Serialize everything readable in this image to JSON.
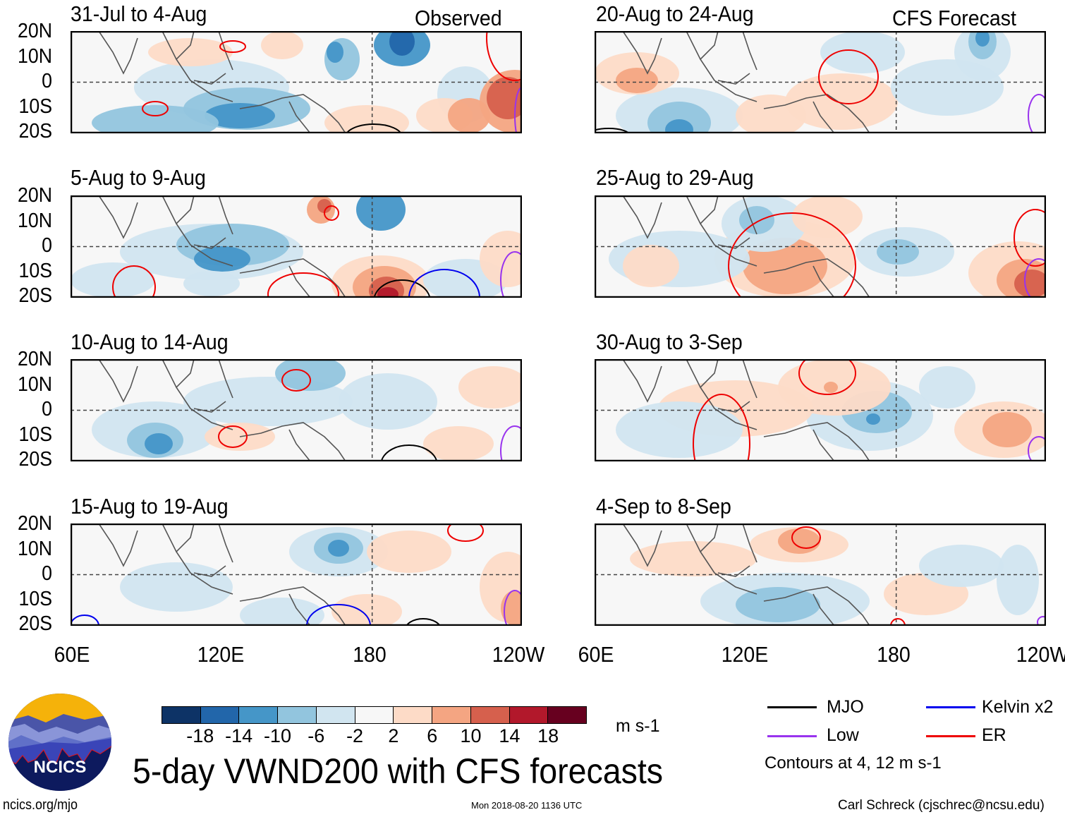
{
  "chart_data": {
    "type": "heatmap",
    "title": "5-day VWND200 with CFS forecasts",
    "variable": "VWND200",
    "units": "m s-1",
    "xlabel": "",
    "ylabel": "",
    "x_ticks": [
      "60E",
      "120E",
      "180",
      "120W"
    ],
    "y_ticks": [
      "20N",
      "10N",
      "0",
      "10S",
      "20S"
    ],
    "xlim": [
      "60E",
      "120W"
    ],
    "ylim": [
      "20S",
      "20N"
    ],
    "colorbar": {
      "levels": [
        -18,
        -14,
        -10,
        -6,
        -2,
        2,
        6,
        10,
        14,
        18
      ],
      "tick_labels": [
        "-18",
        "-14",
        "-10",
        "-6",
        "-2",
        "2",
        "6",
        "10",
        "14",
        "18"
      ],
      "colors": [
        "#0d3366",
        "#2266aa",
        "#4596c8",
        "#92c5de",
        "#d1e5f0",
        "#f7f7f7",
        "#fddbc7",
        "#f4a582",
        "#d6604d",
        "#b2182b",
        "#67001f"
      ],
      "units_label": "m s-1"
    },
    "panels": [
      {
        "id": "p1",
        "column": "left",
        "period": "31-Jul to 4-Aug",
        "tag": "Observed"
      },
      {
        "id": "p2",
        "column": "left",
        "period": "5-Aug to 9-Aug",
        "tag": ""
      },
      {
        "id": "p3",
        "column": "left",
        "period": "10-Aug to 14-Aug",
        "tag": ""
      },
      {
        "id": "p4",
        "column": "left",
        "period": "15-Aug to 19-Aug",
        "tag": ""
      },
      {
        "id": "p5",
        "column": "right",
        "period": "20-Aug to 24-Aug",
        "tag": "CFS Forecast"
      },
      {
        "id": "p6",
        "column": "right",
        "period": "25-Aug to 29-Aug",
        "tag": ""
      },
      {
        "id": "p7",
        "column": "right",
        "period": "30-Aug to 3-Sep",
        "tag": ""
      },
      {
        "id": "p8",
        "column": "right",
        "period": "4-Sep to 8-Sep",
        "tag": ""
      }
    ],
    "legend": {
      "items": [
        {
          "label": "MJO",
          "color": "#000000"
        },
        {
          "label": "Kelvin x2",
          "color": "#0000ee"
        },
        {
          "label": "Low",
          "color": "#9933ee"
        },
        {
          "label": "ER",
          "color": "#ee0000"
        }
      ],
      "note": "Contours at 4, 12 m s-1",
      "placement": "bottom-right"
    }
  },
  "footer": {
    "logo_text": "NCICS",
    "url": "ncics.org/mjo",
    "timestamp": "Mon 2018-08-20 1136 UTC",
    "credit": "Carl Schreck (cjschrec@ncsu.edu)"
  }
}
